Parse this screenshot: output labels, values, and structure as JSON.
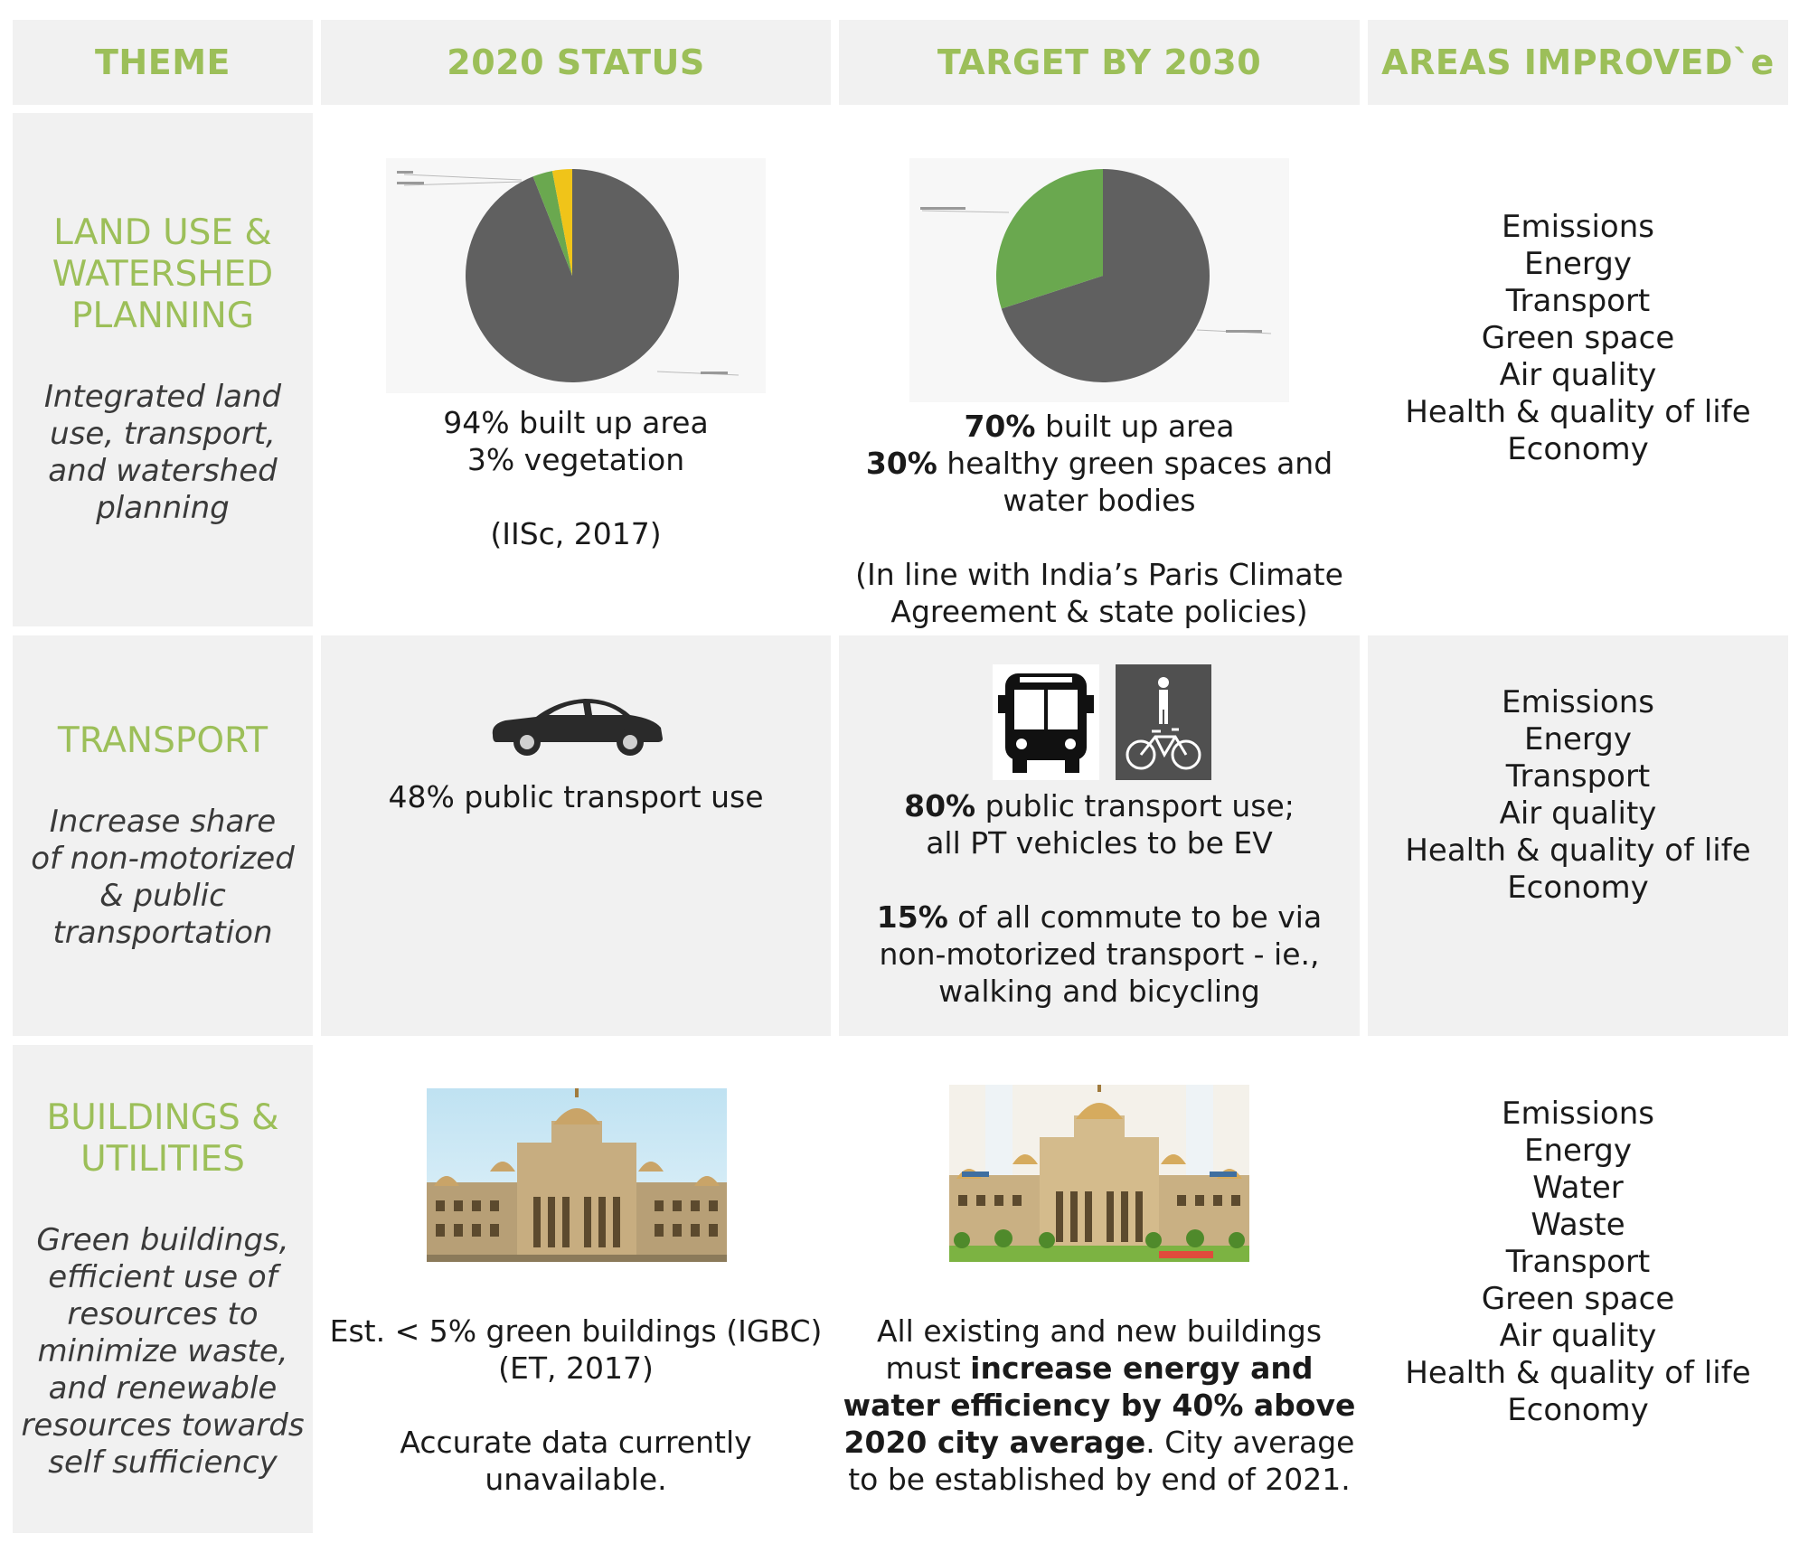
{
  "headers": {
    "theme": "THEME",
    "status": "2020 STATUS",
    "target": "TARGET BY 2030",
    "areas": "AREAS IMPROVED`e"
  },
  "rows": [
    {
      "theme_title": [
        "LAND USE &",
        "WATERSHED",
        "PLANNING"
      ],
      "theme_desc": [
        "Integrated land",
        "use, transport,",
        "and watershed",
        "planning"
      ],
      "status": {
        "line1": "94% built up area",
        "line2": "3% vegetation",
        "source": "(IISc, 2017)"
      },
      "target": {
        "l1_bold": "70%",
        "l1_rest": " built up area",
        "l2_bold": "30%",
        "l2_rest": " healthy green spaces and",
        "l3": "water bodies",
        "l4": "(In line with India’s Paris Climate",
        "l5": "Agreement & state policies)"
      },
      "areas": [
        "Emissions",
        "Energy",
        "Transport",
        "Green space",
        "Air quality",
        "Health & quality of life",
        "Economy"
      ]
    },
    {
      "theme_title": [
        "TRANSPORT"
      ],
      "theme_desc": [
        "Increase share",
        "of non-motorized",
        "& public",
        "transportation"
      ],
      "status": {
        "line1": "48% public transport use"
      },
      "target": {
        "l1_bold": "80%",
        "l1_rest": " public transport use;",
        "l2": "all PT vehicles to be EV",
        "l3_bold": "15%",
        "l3_rest": " of all commute to be via",
        "l4": "non-motorized transport - ie.,",
        "l5": "walking and bicycling"
      },
      "areas": [
        "Emissions",
        "Energy",
        "Transport",
        "Air quality",
        "Health & quality of life",
        "Economy"
      ]
    },
    {
      "theme_title": [
        "BUILDINGS &",
        "UTILITIES"
      ],
      "theme_desc": [
        "Green buildings,",
        "efficient use of",
        "resources to",
        "minimize waste,",
        "and renewable",
        "resources towards",
        "self sufficiency"
      ],
      "status": {
        "line1": "Est. < 5% green buildings (IGBC)",
        "line2": "(ET, 2017)",
        "line3": "Accurate data currently",
        "line4": "unavailable."
      },
      "target": {
        "l1": "All existing and new buildings",
        "l2_pre": "must ",
        "l2_bold": "increase energy and",
        "l3_bold": "water efficiency by 40% above",
        "l4_bold": "2020 city average",
        "l4_rest": ". City average",
        "l5": "to be established by end of 2021."
      },
      "areas": [
        "Emissions",
        "Energy",
        "Water",
        "Waste",
        "Transport",
        "Green space",
        "Air quality",
        "Health & quality of life",
        "Economy"
      ]
    }
  ],
  "pies": {
    "status_2020": [
      {
        "label": "Built up area",
        "value": 94,
        "color": "#606060"
      },
      {
        "label": "Vegetation",
        "value": 3,
        "color": "#6aa84f"
      },
      {
        "label": "Other",
        "value": 3,
        "color": "#f0c419"
      }
    ],
    "target_2030": [
      {
        "label": "Built up area",
        "value": 70,
        "color": "#606060"
      },
      {
        "label": "Green spaces and water bodies",
        "value": 30,
        "color": "#6aa84f"
      }
    ]
  }
}
